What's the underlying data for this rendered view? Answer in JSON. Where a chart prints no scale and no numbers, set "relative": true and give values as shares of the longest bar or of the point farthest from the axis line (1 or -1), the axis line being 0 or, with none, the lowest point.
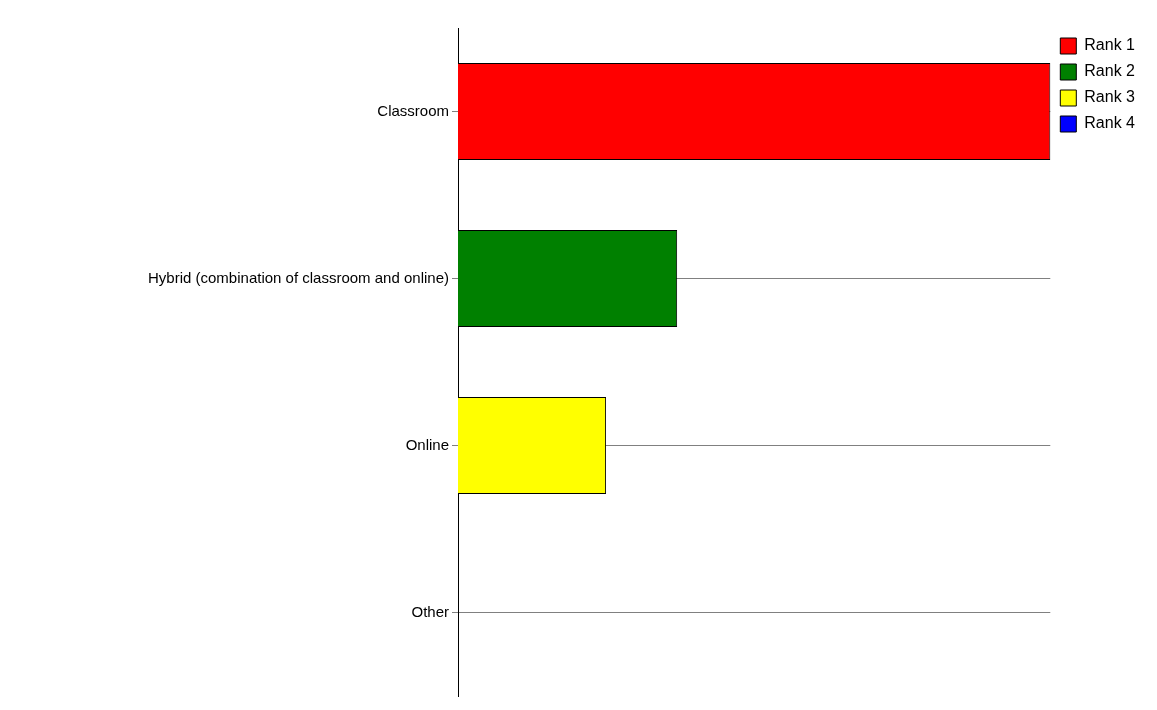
{
  "chart_data": {
    "type": "bar",
    "orientation": "horizontal",
    "stacked": true,
    "relative": true,
    "categories": [
      "Classroom",
      "Hybrid (combination of classroom and online)",
      "Online",
      "Other"
    ],
    "series": [
      {
        "name": "Rank 1",
        "color": "#ff0000",
        "values": [
          1,
          null,
          null,
          null
        ]
      },
      {
        "name": "Rank 2",
        "color": "#008000",
        "values": [
          null,
          0.37,
          null,
          null
        ]
      },
      {
        "name": "Rank 3",
        "color": "#ffff00",
        "values": [
          null,
          null,
          0.25,
          null
        ]
      },
      {
        "name": "Rank 4",
        "color": "#0000ff",
        "values": [
          null,
          null,
          null,
          0
        ]
      }
    ],
    "grid": "y",
    "legend": "top right"
  }
}
